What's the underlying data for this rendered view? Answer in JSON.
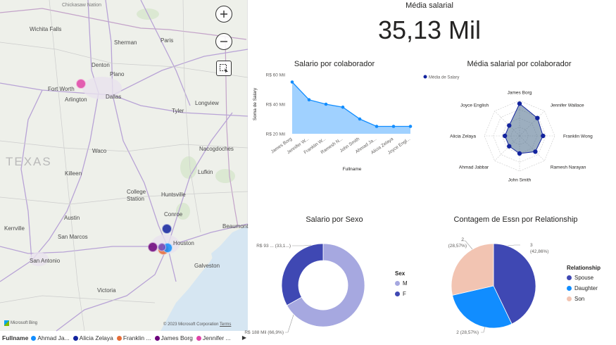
{
  "map": {
    "labels": [
      {
        "text": "Chickasaw Nation",
        "x": 88,
        "y": 4,
        "cls": "dim"
      },
      {
        "text": "Wichita Falls",
        "x": 42,
        "y": 37,
        "cls": ""
      },
      {
        "text": "Sherman",
        "x": 162,
        "y": 56,
        "cls": ""
      },
      {
        "text": "Paris",
        "x": 228,
        "y": 53,
        "cls": ""
      },
      {
        "text": "Denton",
        "x": 130,
        "y": 88,
        "cls": ""
      },
      {
        "text": "Plano",
        "x": 156,
        "y": 101,
        "cls": ""
      },
      {
        "text": "Fort Worth",
        "x": 68,
        "y": 122,
        "cls": ""
      },
      {
        "text": "Dallas",
        "x": 150,
        "y": 133,
        "cls": ""
      },
      {
        "text": "Arlington",
        "x": 92,
        "y": 137,
        "cls": ""
      },
      {
        "text": "Longview",
        "x": 277,
        "y": 142,
        "cls": ""
      },
      {
        "text": "Tyler",
        "x": 244,
        "y": 153,
        "cls": ""
      },
      {
        "text": "TEXAS",
        "x": 8,
        "y": 220,
        "cls": "big"
      },
      {
        "text": "Waco",
        "x": 131,
        "y": 210,
        "cls": ""
      },
      {
        "text": "Nacogdoches",
        "x": 283,
        "y": 207,
        "cls": ""
      },
      {
        "text": "Killeen",
        "x": 92,
        "y": 242,
        "cls": ""
      },
      {
        "text": "Lufkin",
        "x": 281,
        "y": 240,
        "cls": ""
      },
      {
        "text": "College",
        "x": 180,
        "y": 268,
        "cls": ""
      },
      {
        "text": "Station",
        "x": 180,
        "y": 278,
        "cls": ""
      },
      {
        "text": "Huntsville",
        "x": 229,
        "y": 272,
        "cls": ""
      },
      {
        "text": "Conroe",
        "x": 233,
        "y": 300,
        "cls": ""
      },
      {
        "text": "Austin",
        "x": 91,
        "y": 305,
        "cls": ""
      },
      {
        "text": "Kerrville",
        "x": 6,
        "y": 320,
        "cls": ""
      },
      {
        "text": "Beaumont",
        "x": 316,
        "y": 317,
        "cls": ""
      },
      {
        "text": "San Marcos",
        "x": 82,
        "y": 332,
        "cls": ""
      },
      {
        "text": "Houston",
        "x": 246,
        "y": 341,
        "cls": ""
      },
      {
        "text": "San Antonio",
        "x": 42,
        "y": 366,
        "cls": ""
      },
      {
        "text": "Galveston",
        "x": 276,
        "y": 373,
        "cls": ""
      },
      {
        "text": "Victoria",
        "x": 138,
        "y": 408,
        "cls": ""
      }
    ],
    "bubbles": [
      {
        "name": "Jennifer Wallace",
        "x": 115,
        "y": 119,
        "r": 7,
        "color": "#e044a7"
      },
      {
        "name": "Alicia Zelaya",
        "x": 237,
        "y": 325,
        "r": 7,
        "color": "#12239e"
      },
      {
        "name": "James Borg",
        "x": 217,
        "y": 351,
        "r": 7,
        "color": "#6b007b"
      },
      {
        "name": "Franklin Wong",
        "x": 232,
        "y": 354,
        "r": 8,
        "color": "#e66c37"
      },
      {
        "name": "Ahmad Jabbar",
        "x": 238,
        "y": 352,
        "r": 7,
        "color": "#118dff"
      },
      {
        "name": "Ramesh Narayan",
        "x": 230,
        "y": 351,
        "r": 6,
        "color": "#744ec2"
      }
    ],
    "bing": "Microsoft Bing",
    "copyright": "© 2023 Microsoft Corporation",
    "terms": "Terms"
  },
  "map_legend": {
    "title": "Fullname",
    "items": [
      {
        "label": "Ahmad Ja...",
        "color": "#118dff"
      },
      {
        "label": "Alicia Zelaya",
        "color": "#12239e"
      },
      {
        "label": "Franklin ...",
        "color": "#e66c37"
      },
      {
        "label": "James Borg",
        "color": "#6b007b"
      },
      {
        "label": "Jennifer ...",
        "color": "#e044a7"
      }
    ]
  },
  "kpi": {
    "title": "Média salarial",
    "value": "35,13 Mil"
  },
  "chart_data": [
    {
      "type": "area",
      "title": "Salario por colaborador",
      "xlabel": "Fullname",
      "ylabel": "Soma de Salary",
      "y_ticks": [
        "R$ 20 Mil",
        "R$ 40 Mil",
        "R$ 60 Mil"
      ],
      "y_tick_values": [
        20000,
        40000,
        60000
      ],
      "ylim": [
        20000,
        60000
      ],
      "categories": [
        "James Borg",
        "Jennifer W...",
        "Franklin W...",
        "Ramesh N...",
        "John Smith",
        "Ahmad Ja...",
        "Alicia Zelaya",
        "Joyce Engl..."
      ],
      "values": [
        55000,
        43000,
        40000,
        38000,
        30000,
        25000,
        25000,
        25000
      ],
      "color": "#118dff",
      "fill": "#a0d1ff"
    },
    {
      "type": "radar",
      "title": "Média salarial por colaborador",
      "legend": "Média de Salary",
      "categories": [
        "James Borg",
        "Jennifer Wallace",
        "Franklin Wong",
        "Ramesh Narayan",
        "John Smith",
        "Ahmad Jabbar",
        "Alicia Zelaya",
        "Joyce English"
      ],
      "values": [
        55000,
        43000,
        40000,
        38000,
        30000,
        25000,
        25000,
        25000
      ],
      "max": 60000,
      "color": "#12239e",
      "fill": "#4a6b8a"
    },
    {
      "type": "pie",
      "donut": true,
      "title": "Salario por Sexo",
      "legend_title": "Sex",
      "slices": [
        {
          "name": "M",
          "value": 188000,
          "label": "R$ 188 Mil (66,9%)",
          "color": "#a6a8e0"
        },
        {
          "name": "F",
          "value": 93000,
          "label": "R$ 93 ... (33,1...)",
          "color": "#3f48b3"
        }
      ]
    },
    {
      "type": "pie",
      "donut": false,
      "title": "Contagem de Essn por Relationship",
      "legend_title": "Relationship",
      "slices": [
        {
          "name": "Spouse",
          "value": 3,
          "label_a": "3",
          "label_b": "(42,86%)",
          "color": "#3f48b3"
        },
        {
          "name": "Daughter",
          "value": 2,
          "label_a": "2 (28,57%)",
          "label_b": "",
          "color": "#118dff"
        },
        {
          "name": "Son",
          "value": 2,
          "label_a": "2",
          "label_b": "(28,57%)",
          "color": "#f2c4b2"
        }
      ]
    }
  ]
}
